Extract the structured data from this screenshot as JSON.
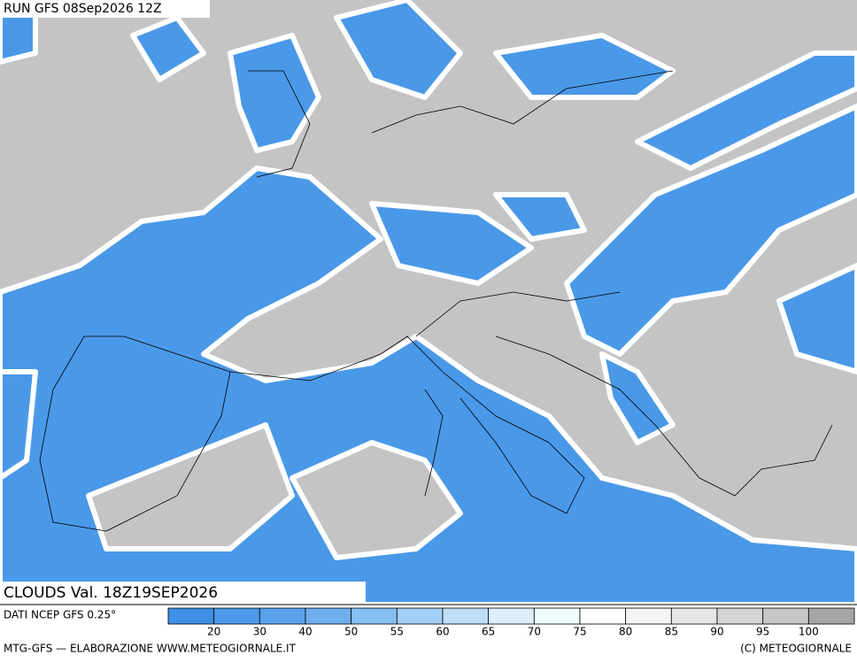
{
  "header": {
    "run": "RUN GFS 08Sep2026 12Z",
    "field": "CLOUDS Val. 18Z19SEP2026"
  },
  "legend": {
    "source": "DATI NCEP GFS 0.25°",
    "labels": [
      20,
      30,
      40,
      50,
      55,
      60,
      65,
      70,
      75,
      80,
      85,
      90,
      95,
      100
    ],
    "colors": [
      "#3f90e6",
      "#4c98e9",
      "#5ba2ec",
      "#70afef",
      "#88bff2",
      "#a3cef5",
      "#bfdef8",
      "#dcefff",
      "#eefeff",
      "#ffffff",
      "#f4f4f4",
      "#e6e6e6",
      "#d6d6d6",
      "#c6c6c6",
      "#a6a6a6"
    ]
  },
  "footer": {
    "left": "MTG-GFS — ELABORAZIONE WWW.METEOGIORNALE.IT",
    "right": "(C) METEOGIORNALE"
  }
}
